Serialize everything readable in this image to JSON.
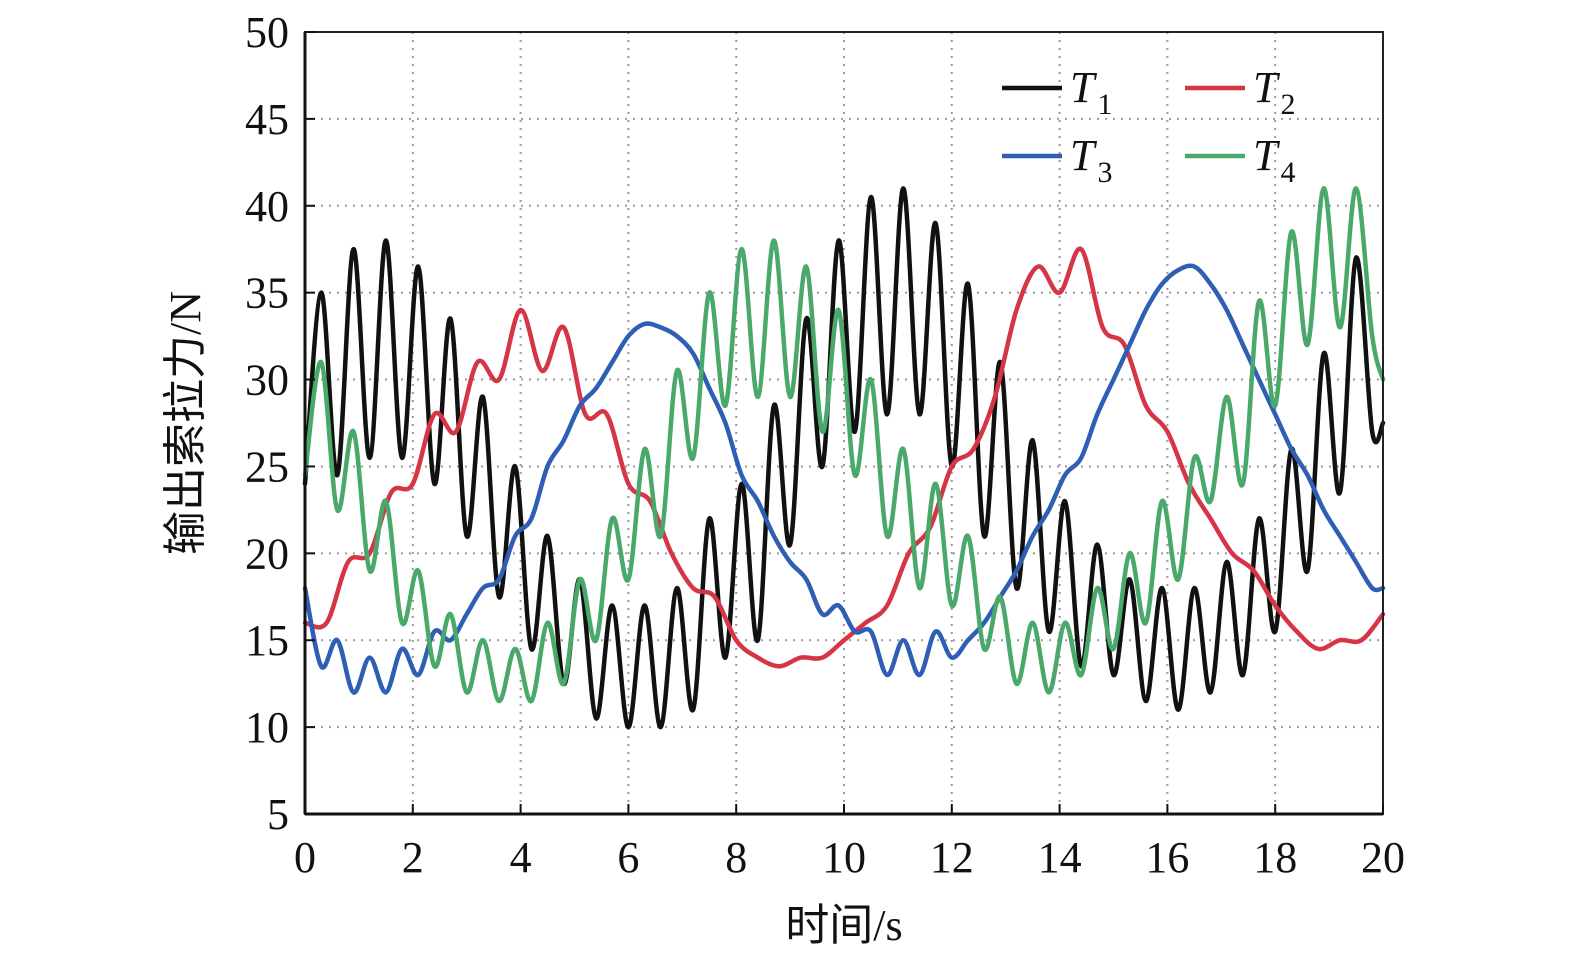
{
  "chart_data": {
    "type": "line",
    "xlabel": "时间/s",
    "ylabel": "输出索拉力/N",
    "xlim": [
      0,
      20
    ],
    "ylim": [
      5,
      50
    ],
    "xticks": [
      0,
      2,
      4,
      6,
      8,
      10,
      12,
      14,
      16,
      18,
      20
    ],
    "yticks": [
      5,
      10,
      15,
      20,
      25,
      30,
      35,
      40,
      45,
      50
    ],
    "grid": true,
    "legend_position": "top-right",
    "series": [
      {
        "name": "T",
        "subscript": "1",
        "color": "#111111",
        "x": [
          0,
          0.3,
          0.6,
          0.9,
          1.2,
          1.5,
          1.8,
          2.1,
          2.4,
          2.7,
          3.0,
          3.3,
          3.6,
          3.9,
          4.2,
          4.5,
          4.8,
          5.1,
          5.4,
          5.7,
          6.0,
          6.3,
          6.6,
          6.9,
          7.2,
          7.5,
          7.8,
          8.1,
          8.4,
          8.7,
          9.0,
          9.3,
          9.6,
          9.9,
          10.2,
          10.5,
          10.8,
          11.1,
          11.4,
          11.7,
          12.0,
          12.3,
          12.6,
          12.9,
          13.2,
          13.5,
          13.8,
          14.1,
          14.4,
          14.7,
          15.0,
          15.3,
          15.6,
          15.9,
          16.2,
          16.5,
          16.8,
          17.1,
          17.4,
          17.7,
          18.0,
          18.3,
          18.6,
          18.9,
          19.2,
          19.5,
          19.8,
          20.0
        ],
        "y": [
          24,
          35,
          24.5,
          37.5,
          25.5,
          38,
          25.5,
          36.5,
          24,
          33.5,
          21,
          29,
          17.5,
          25,
          14.5,
          21,
          12.5,
          18.5,
          10.5,
          17,
          10,
          17,
          10,
          18,
          11,
          22,
          14,
          24,
          15,
          28.5,
          20.5,
          33.5,
          25,
          38,
          27,
          40.5,
          28,
          41,
          28,
          39,
          25,
          35.5,
          21,
          31,
          18,
          26.5,
          15.5,
          23,
          13.5,
          20.5,
          13,
          18.5,
          11.5,
          18,
          11,
          18,
          12,
          19.5,
          13,
          22,
          15.5,
          26,
          19,
          31.5,
          23.5,
          37,
          27,
          27.5
        ]
      },
      {
        "name": "T",
        "subscript": "2",
        "color": "#d63545",
        "x": [
          0,
          0.4,
          0.8,
          1.2,
          1.6,
          2.0,
          2.4,
          2.8,
          3.2,
          3.6,
          4.0,
          4.4,
          4.8,
          5.2,
          5.6,
          6.0,
          6.4,
          6.8,
          7.2,
          7.6,
          8.0,
          8.4,
          8.8,
          9.2,
          9.6,
          10.0,
          10.4,
          10.8,
          11.2,
          11.6,
          12.0,
          12.4,
          12.8,
          13.2,
          13.6,
          14.0,
          14.4,
          14.8,
          15.2,
          15.6,
          16.0,
          16.4,
          16.8,
          17.2,
          17.6,
          18.0,
          18.4,
          18.8,
          19.2,
          19.6,
          20.0
        ],
        "y": [
          16,
          16,
          19.5,
          20,
          23.5,
          24,
          28,
          27,
          31,
          30,
          34,
          30.5,
          33,
          28,
          28,
          24,
          23,
          20,
          18,
          17.5,
          15,
          14,
          13.5,
          14,
          14,
          15,
          16,
          17,
          20,
          21.5,
          25,
          26,
          29,
          34,
          36.5,
          35,
          37.5,
          33,
          32,
          28.5,
          27,
          24,
          22,
          20,
          19,
          17,
          15.5,
          14.5,
          15,
          15,
          16.5
        ]
      },
      {
        "name": "T",
        "subscript": "3",
        "color": "#2e5fb4",
        "x": [
          0,
          0.3,
          0.6,
          0.9,
          1.2,
          1.5,
          1.8,
          2.1,
          2.4,
          2.7,
          3.0,
          3.3,
          3.6,
          3.9,
          4.2,
          4.5,
          4.8,
          5.1,
          5.4,
          5.7,
          6.0,
          6.3,
          6.6,
          6.9,
          7.2,
          7.5,
          7.8,
          8.1,
          8.4,
          8.7,
          9.0,
          9.3,
          9.6,
          9.9,
          10.2,
          10.5,
          10.8,
          11.1,
          11.4,
          11.7,
          12.0,
          12.3,
          12.6,
          12.9,
          13.2,
          13.5,
          13.8,
          14.1,
          14.4,
          14.7,
          15.0,
          15.3,
          15.6,
          15.9,
          16.2,
          16.5,
          16.8,
          17.1,
          17.4,
          17.7,
          18.0,
          18.3,
          18.6,
          18.9,
          19.2,
          19.5,
          19.8,
          20.0
        ],
        "y": [
          18,
          13.5,
          15,
          12,
          14,
          12,
          14.5,
          13,
          15.5,
          15,
          16.5,
          18,
          18.5,
          21,
          22,
          25,
          26.5,
          28.5,
          29.5,
          31,
          32.5,
          33.2,
          33,
          32.5,
          31.5,
          29.5,
          27.5,
          24.5,
          23,
          21,
          19.5,
          18.5,
          16.5,
          17,
          15.5,
          15.5,
          13,
          15,
          13,
          15.5,
          14,
          15,
          16,
          17.5,
          19,
          21,
          22.5,
          24.5,
          25.5,
          28,
          30,
          32,
          34,
          35.5,
          36.3,
          36.5,
          35.5,
          34,
          32,
          30,
          28,
          26,
          24.5,
          22.5,
          21,
          19.5,
          18,
          18
        ]
      },
      {
        "name": "T",
        "subscript": "4",
        "color": "#4aa96a",
        "x": [
          0,
          0.3,
          0.6,
          0.9,
          1.2,
          1.5,
          1.8,
          2.1,
          2.4,
          2.7,
          3.0,
          3.3,
          3.6,
          3.9,
          4.2,
          4.5,
          4.8,
          5.1,
          5.4,
          5.7,
          6.0,
          6.3,
          6.6,
          6.9,
          7.2,
          7.5,
          7.8,
          8.1,
          8.4,
          8.7,
          9.0,
          9.3,
          9.6,
          9.9,
          10.2,
          10.5,
          10.8,
          11.1,
          11.4,
          11.7,
          12.0,
          12.3,
          12.6,
          12.9,
          13.2,
          13.5,
          13.8,
          14.1,
          14.4,
          14.7,
          15.0,
          15.3,
          15.6,
          15.9,
          16.2,
          16.5,
          16.8,
          17.1,
          17.4,
          17.7,
          18.0,
          18.3,
          18.6,
          18.9,
          19.2,
          19.5,
          19.8,
          20.0
        ],
        "y": [
          24.5,
          31,
          22.5,
          27,
          19,
          23,
          16,
          19,
          13.5,
          16.5,
          12,
          15,
          11.5,
          14.5,
          11.5,
          16,
          12.5,
          18.5,
          15,
          22,
          18.5,
          26,
          21,
          30.5,
          25.5,
          35,
          28.5,
          37.5,
          29,
          38,
          29,
          36.5,
          27,
          34,
          24.5,
          30,
          21,
          26,
          18,
          24,
          17,
          21,
          14.5,
          17.5,
          12.5,
          16,
          12,
          16,
          13,
          18,
          14.5,
          20,
          16,
          23,
          18.5,
          25.5,
          23,
          29,
          24,
          34.5,
          28.5,
          38.5,
          32,
          41,
          33,
          41,
          32.5,
          30
        ]
      }
    ]
  }
}
